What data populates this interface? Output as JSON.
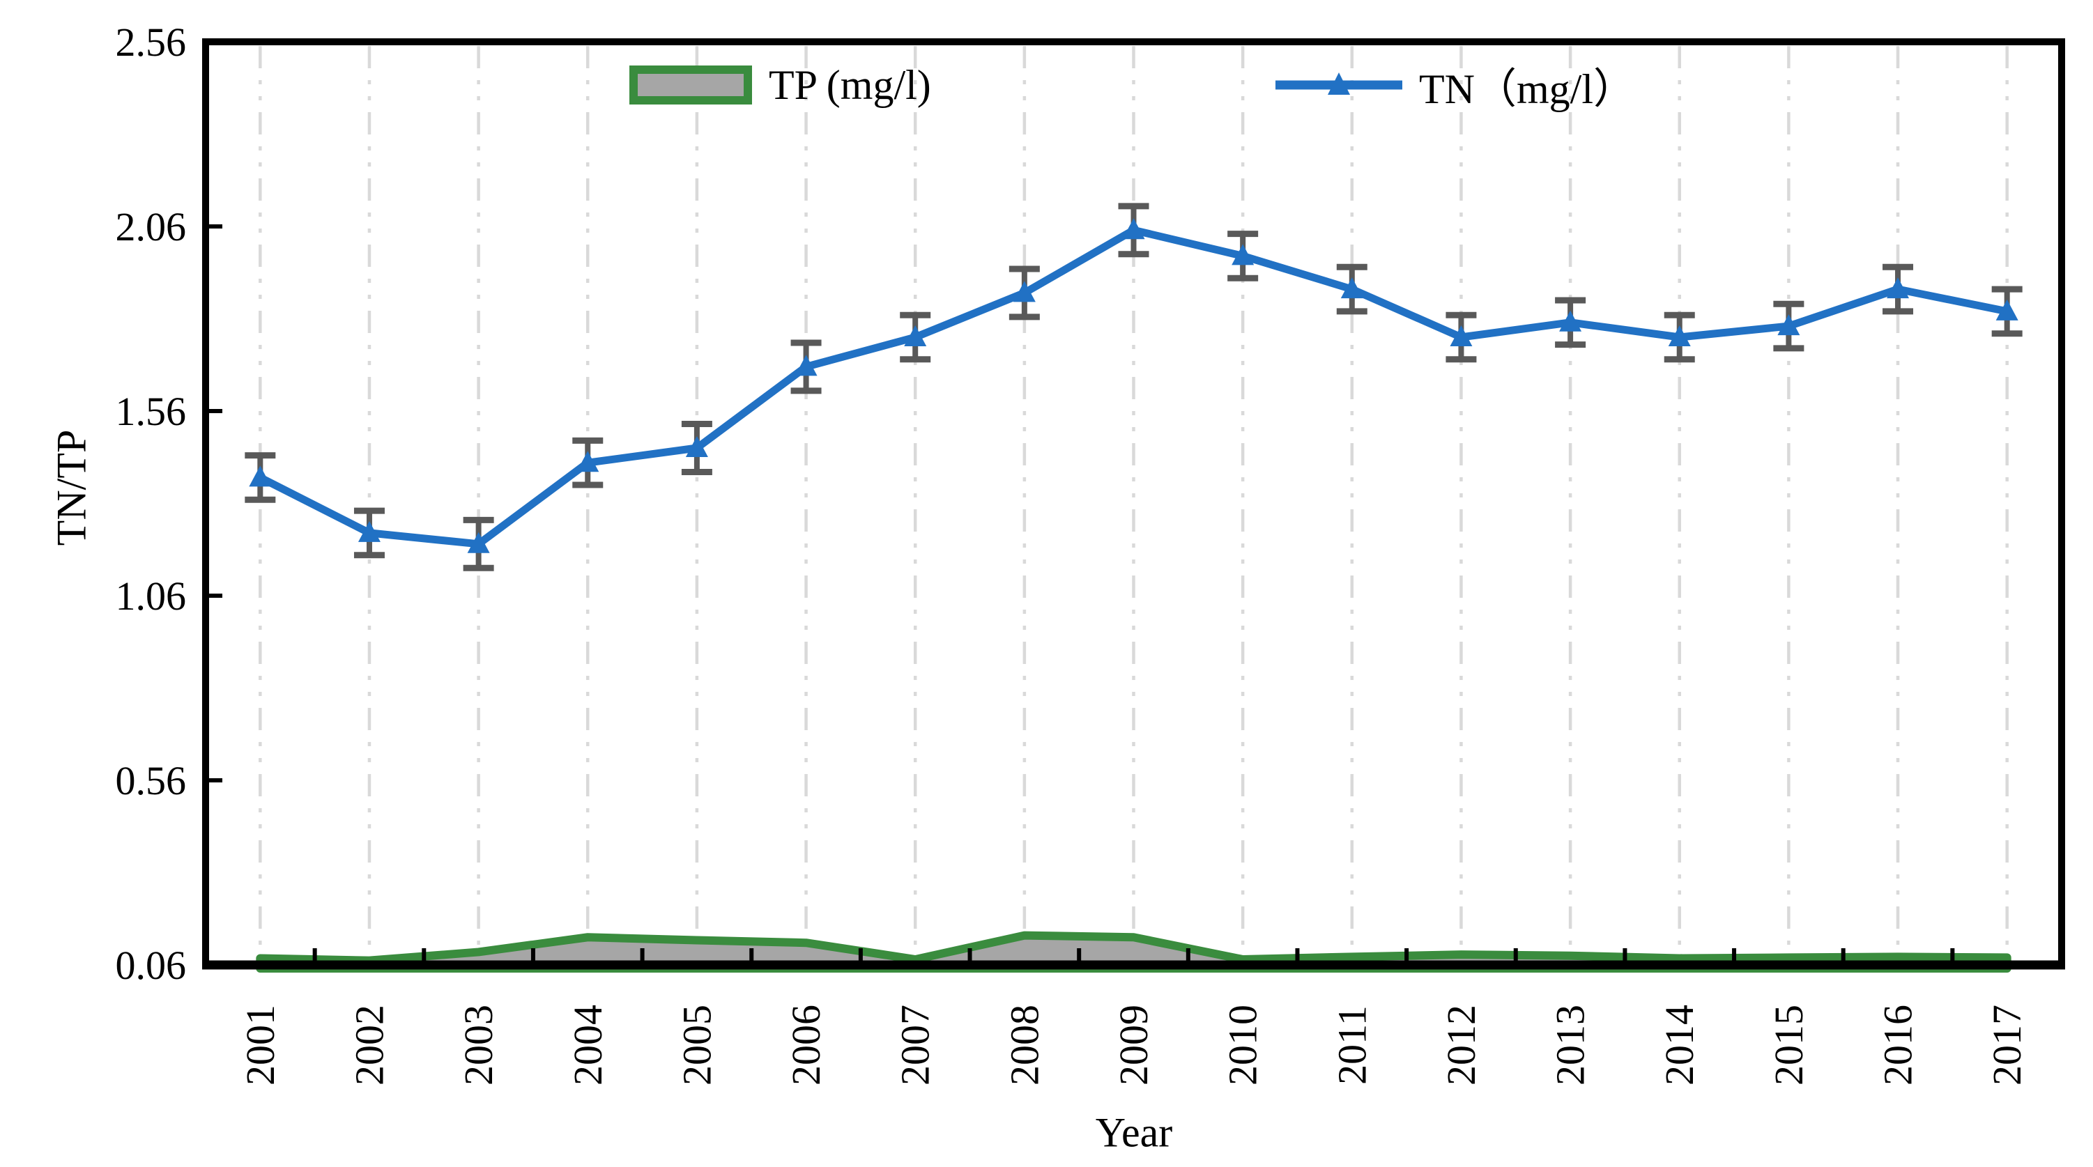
{
  "chart_data": {
    "type": "line",
    "title": "",
    "x_title": "Year",
    "y_title": "TN/TP",
    "years": [
      "2001",
      "2002",
      "2003",
      "2004",
      "2005",
      "2006",
      "2007",
      "2008",
      "2009",
      "2010",
      "2011",
      "2012",
      "2013",
      "2014",
      "2015",
      "2016",
      "2017"
    ],
    "y_ticks": [
      "0.06",
      "0.56",
      "1.06",
      "1.56",
      "2.06",
      "2.56"
    ],
    "ylim": [
      0.06,
      2.56
    ],
    "grid": "vertical dash-dot gridlines at each year",
    "legend_position": "top-inside",
    "series": [
      {
        "name": "TP (mg/l)",
        "type": "area",
        "color": "#3a8c3e",
        "fill": "#a6a6a6",
        "values": [
          0.078,
          0.072,
          0.095,
          0.135,
          0.127,
          0.12,
          0.075,
          0.14,
          0.135,
          0.075,
          0.082,
          0.088,
          0.085,
          0.078,
          0.08,
          0.082,
          0.08
        ]
      },
      {
        "name": "TN（mg/l）",
        "type": "line-with-error-bars",
        "color": "#2171c4",
        "marker": "triangle-up",
        "values": [
          1.38,
          1.23,
          1.2,
          1.42,
          1.46,
          1.68,
          1.76,
          1.88,
          2.05,
          1.98,
          1.89,
          1.76,
          1.8,
          1.76,
          1.79,
          1.89,
          1.83
        ],
        "errors": [
          0.06,
          0.06,
          0.065,
          0.06,
          0.065,
          0.065,
          0.06,
          0.065,
          0.065,
          0.06,
          0.06,
          0.06,
          0.06,
          0.06,
          0.06,
          0.06,
          0.06
        ]
      }
    ],
    "colors": {
      "tn_line": "#2171c4",
      "tp_border": "#3a8c3e",
      "tp_fill": "#a6a6a6",
      "error_bar": "#595959",
      "grid": "#d9d9d9",
      "axis": "#000000"
    }
  }
}
